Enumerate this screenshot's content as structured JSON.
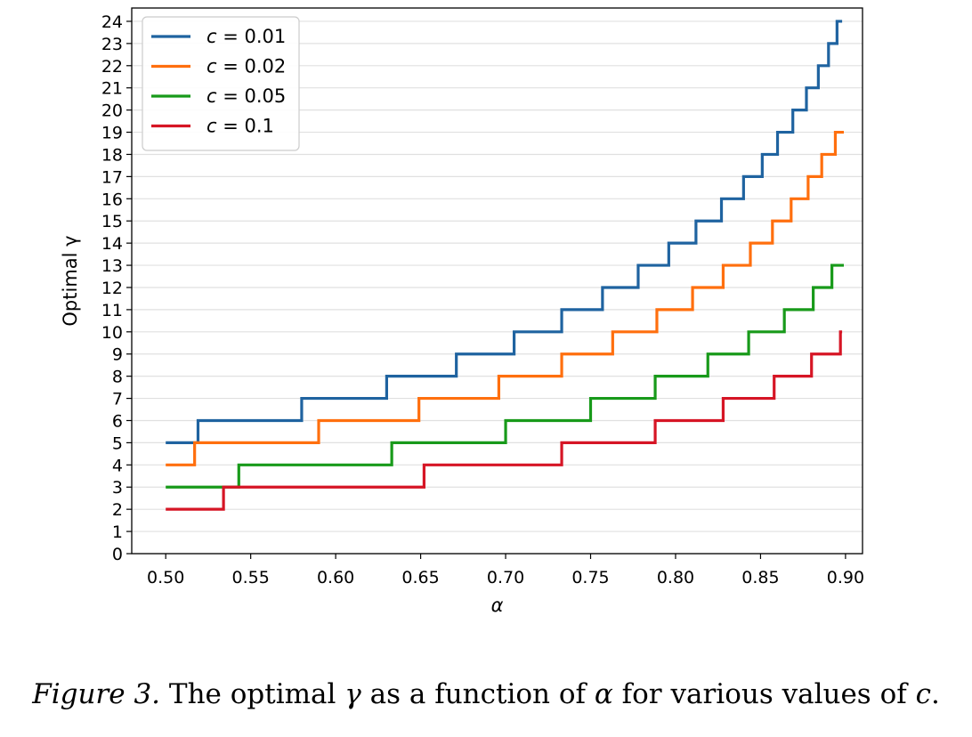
{
  "caption": {
    "label": "Figure 3.",
    "before_gamma": " The optimal ",
    "gamma": "γ",
    "mid": " as a function of ",
    "alpha": "α",
    "after_alpha": " for various values of ",
    "c": "c",
    "end": "."
  },
  "colors": {
    "c001": "#1f63a0",
    "c002": "#ff6f0e",
    "c005": "#189a1a",
    "c01": "#d61525",
    "grid": "#e0e0e0"
  },
  "chart_data": {
    "type": "line",
    "step": true,
    "xlabel": "α",
    "ylabel": "Optimal γ",
    "xlim": [
      0.48,
      0.91
    ],
    "ylim": [
      0,
      24.6
    ],
    "xticks": [
      0.5,
      0.55,
      0.6,
      0.65,
      0.7,
      0.75,
      0.8,
      0.85,
      0.9
    ],
    "xtick_labels": [
      "0.50",
      "0.55",
      "0.60",
      "0.65",
      "0.70",
      "0.75",
      "0.80",
      "0.85",
      "0.90"
    ],
    "yticks": [
      0,
      1,
      2,
      3,
      4,
      5,
      6,
      7,
      8,
      9,
      10,
      11,
      12,
      13,
      14,
      15,
      16,
      17,
      18,
      19,
      20,
      21,
      22,
      23,
      24
    ],
    "grid": "horizontal",
    "legend_position": "top-left",
    "series": [
      {
        "name": "c = 0.01",
        "legend_var": "c",
        "legend_value": " = 0.01",
        "color_key": "c001",
        "x": [
          0.5,
          0.519,
          0.58,
          0.63,
          0.671,
          0.705,
          0.733,
          0.757,
          0.778,
          0.796,
          0.812,
          0.827,
          0.84,
          0.851,
          0.86,
          0.869,
          0.877,
          0.884,
          0.89,
          0.895,
          0.898
        ],
        "y": [
          5,
          6,
          7,
          8,
          9,
          10,
          11,
          12,
          13,
          14,
          15,
          16,
          17,
          18,
          19,
          20,
          21,
          22,
          23,
          24,
          24
        ]
      },
      {
        "name": "c = 0.02",
        "legend_var": "c",
        "legend_value": " = 0.02",
        "color_key": "c002",
        "x": [
          0.5,
          0.517,
          0.59,
          0.649,
          0.696,
          0.733,
          0.763,
          0.789,
          0.81,
          0.828,
          0.844,
          0.857,
          0.868,
          0.878,
          0.886,
          0.894,
          0.899
        ],
        "y": [
          4,
          5,
          6,
          7,
          8,
          9,
          10,
          11,
          12,
          13,
          14,
          15,
          16,
          17,
          18,
          19,
          19
        ]
      },
      {
        "name": "c = 0.05",
        "legend_var": "c",
        "legend_value": " = 0.05",
        "color_key": "c005",
        "x": [
          0.5,
          0.543,
          0.633,
          0.7,
          0.75,
          0.788,
          0.819,
          0.843,
          0.864,
          0.881,
          0.892,
          0.899
        ],
        "y": [
          3,
          4,
          5,
          6,
          7,
          8,
          9,
          10,
          11,
          12,
          13,
          13
        ]
      },
      {
        "name": "c = 0.1",
        "legend_var": "c",
        "legend_value": " = 0.1",
        "color_key": "c01",
        "x": [
          0.5,
          0.534,
          0.652,
          0.733,
          0.788,
          0.828,
          0.858,
          0.88,
          0.897,
          0.898
        ],
        "y": [
          2,
          3,
          4,
          5,
          6,
          7,
          8,
          9,
          10,
          10
        ]
      }
    ]
  }
}
